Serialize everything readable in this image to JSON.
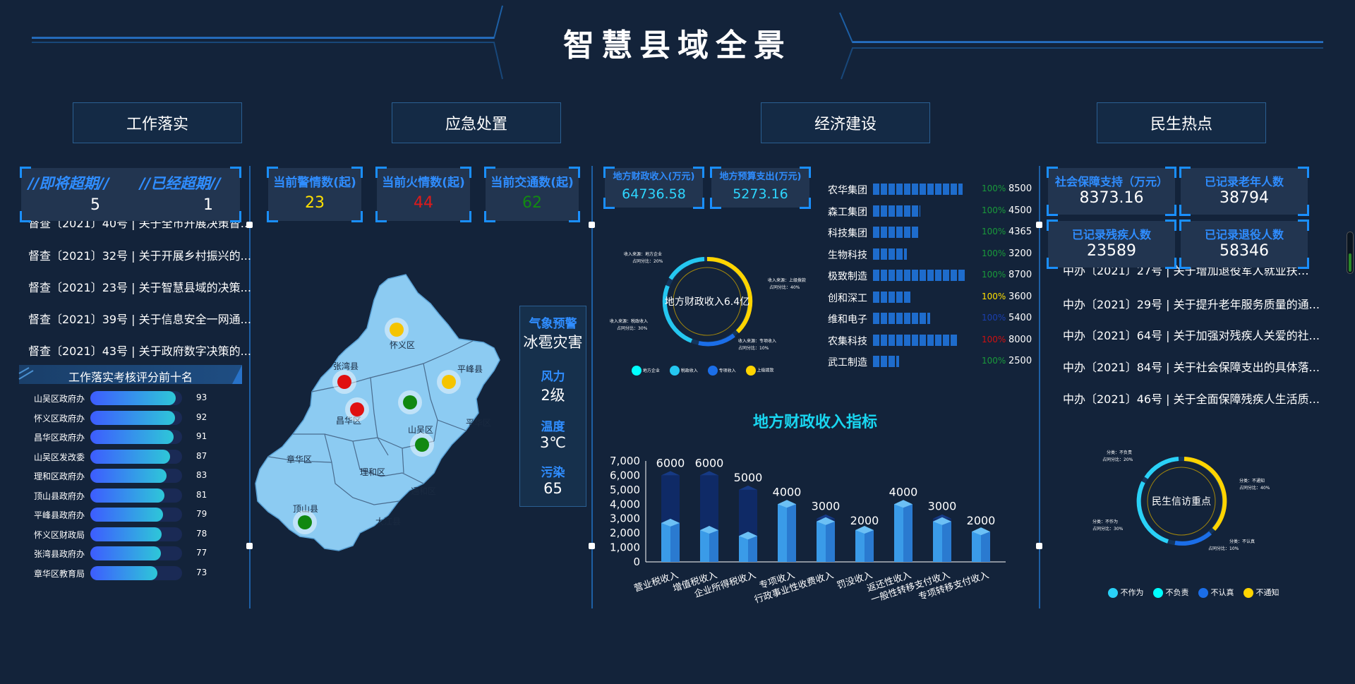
{
  "header": {
    "title": "智慧县域全景"
  },
  "tabs": [
    {
      "label": "工作落实"
    },
    {
      "label": "应急处置"
    },
    {
      "label": "经济建设"
    },
    {
      "label": "民生热点"
    }
  ],
  "work": {
    "due_soon_label": "//即将超期//",
    "due_soon_value": "5",
    "overdue_label": "//已经超期//",
    "overdue_value": "1",
    "docs": [
      "督查〔2021〕40号 | 关于全市开展决策督…",
      "督查〔2021〕32号 | 关于开展乡村振兴的...",
      "督查〔2021〕23号 | 关于智慧县域的决策...",
      "督查〔2021〕39号 | 关于信息安全一网通...",
      "督查〔2021〕43号 | 关于政府数字决策的..."
    ],
    "ranking_title": "工作落实考核评分前十名",
    "ranking": [
      {
        "name": "山吴区政府办",
        "score": 93
      },
      {
        "name": "怀义区政府办",
        "score": 92
      },
      {
        "name": "昌华区政府办",
        "score": 91
      },
      {
        "name": "山吴区发改委",
        "score": 87
      },
      {
        "name": "理和区政府办",
        "score": 83
      },
      {
        "name": "顶山县政府办",
        "score": 81
      },
      {
        "name": "平峰县政府办",
        "score": 79
      },
      {
        "name": "怀义区财政局",
        "score": 78
      },
      {
        "name": "张湾县政府办",
        "score": 77
      },
      {
        "name": "章华区教育局",
        "score": 73
      }
    ]
  },
  "emergency": {
    "police_label": "当前警情数(起)",
    "police_value": "23",
    "fire_label": "当前火情数(起)",
    "fire_value": "44",
    "traffic_label": "当前交通数(起)",
    "traffic_value": "62",
    "map_labels": [
      "怀义区",
      "平峰县",
      "张湾县",
      "昌华区",
      "山吴区",
      "平华区",
      "章华区",
      "理和区",
      "通和区",
      "顶山县",
      "大江县"
    ],
    "markers": [
      {
        "color": "#f5c400"
      },
      {
        "color": "#f5c400"
      },
      {
        "color": "#e01010"
      },
      {
        "color": "#e01010"
      },
      {
        "color": "#118811"
      },
      {
        "color": "#118811"
      },
      {
        "color": "#118811"
      }
    ],
    "weather": {
      "warn_label": "气象预警",
      "warn_value": "冰雹灾害",
      "wind_label": "风力",
      "wind_value": "2级",
      "temp_label": "温度",
      "temp_value": "3℃",
      "pollution_label": "污染",
      "pollution_value": "65"
    }
  },
  "economy": {
    "revenue_label": "地方财政收入(万元)",
    "revenue_value": "64736.58",
    "budget_label": "地方预算支出(万元)",
    "budget_value": "5273.16",
    "donut_center": "地方财政收入6.4亿",
    "donut_notes": [
      "收入来源：地方企业",
      "占同分比：20%",
      "收入来源：上级拨款",
      "占同分比：40%",
      "收入来源：税政收入",
      "占同分比：30%",
      "收入来源：专项收入",
      "占同分比：10%"
    ],
    "donut_legend": [
      "地方企业",
      "税政收入",
      "专项收入",
      "上级拨款"
    ],
    "companies": [
      {
        "name": "农华集团",
        "pct": "100%",
        "pct_color": "#1a9a3a",
        "value": "8500",
        "level": 8500
      },
      {
        "name": "森工集团",
        "pct": "100%",
        "pct_color": "#1a9a3a",
        "value": "4500",
        "level": 4500
      },
      {
        "name": "科技集团",
        "pct": "100%",
        "pct_color": "#1a9a3a",
        "value": "4365",
        "level": 4365
      },
      {
        "name": "生物科技",
        "pct": "100%",
        "pct_color": "#1a9a3a",
        "value": "3200",
        "level": 3200
      },
      {
        "name": "极致制造",
        "pct": "100%",
        "pct_color": "#1a9a3a",
        "value": "8700",
        "level": 8700
      },
      {
        "name": "创和深工",
        "pct": "100%",
        "pct_color": "#ffe000",
        "value": "3600",
        "level": 3600
      },
      {
        "name": "维和电子",
        "pct": "100%",
        "pct_color": "#1a3fb0",
        "value": "5400",
        "level": 5400
      },
      {
        "name": "农集科技",
        "pct": "100%",
        "pct_color": "#d01010",
        "value": "8000",
        "level": 8000
      },
      {
        "name": "武工制造",
        "pct": "100%",
        "pct_color": "#1a9a3a",
        "value": "2500",
        "level": 2500
      }
    ],
    "chart_title": "地方财政收入指标"
  },
  "chart_data": {
    "type": "bar",
    "title": "地方财政收入指标",
    "categories": [
      "营业税收入",
      "增值税收入",
      "企业所得税收入",
      "专项收入",
      "行政事业性收费收入",
      "罚没收入",
      "返还性收入",
      "一般性转移支付收入",
      "专项转移支付收入"
    ],
    "series": [
      {
        "values": [
          6000,
          6000,
          5000,
          4000,
          3000,
          2000,
          4000,
          3000,
          2000
        ]
      },
      {
        "values": [
          2700,
          2200,
          1800,
          4000,
          2800,
          2200,
          4000,
          2800,
          2100
        ]
      }
    ],
    "ylim": [
      0,
      7000
    ],
    "yticks": [
      "0",
      "1,000",
      "2,000",
      "3,000",
      "4,000",
      "5,000",
      "6,000",
      "7,000"
    ]
  },
  "livelihood": {
    "social_label": "社会保障支持（万元）",
    "social_value": "8373.16",
    "elderly_label": "已记录老年人数",
    "elderly_value": "38794",
    "disabled_label": "已记录残疾人数",
    "disabled_value": "23589",
    "veteran_label": "已记录退役人数",
    "veteran_value": "58346",
    "docs": [
      "中办〔2021〕27号 | 关于增加退役军人就业扶…",
      "中办〔2021〕29号 | 关于提升老年服务质量的通...",
      "中办〔2021〕64号 | 关于加强对残疾人关爱的社...",
      "中办〔2021〕84号 | 关于社会保障支出的具体落...",
      "中办〔2021〕46号 | 关于全面保障残疾人生活质..."
    ],
    "donut_center": "民生信访重点",
    "donut_notes": [
      "分类：不负责",
      "占同分比：20%",
      "分类：不通知",
      "占同分比：40%",
      "分类：不作为",
      "占同分比：30%",
      "分类：不认真",
      "占同分比：10%"
    ],
    "donut_legend": [
      "不作为",
      "不负责",
      "不认真",
      "不通知"
    ]
  }
}
